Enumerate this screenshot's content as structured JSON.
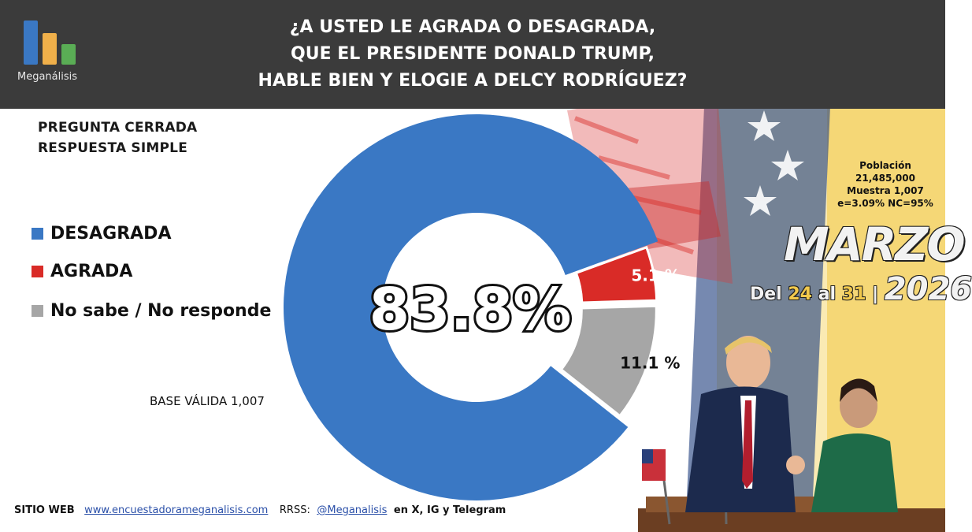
{
  "header": {
    "logo_text": "Meganálisis",
    "title_lines": [
      "¿A USTED LE AGRADA O DESAGRADA,",
      "QUE EL PRESIDENTE DONALD TRUMP,",
      "HABLE BIEN Y ELOGIE A DELCY RODRÍGUEZ?"
    ]
  },
  "question_type": {
    "line1": "PREGUNTA  CERRADA",
    "line2": "RESPUESTA SIMPLE"
  },
  "legend": [
    {
      "label": "DESAGRADA",
      "color": "#3a78c4"
    },
    {
      "label": "AGRADA",
      "color": "#d92b27"
    },
    {
      "label": "No sabe / No responde",
      "color": "#a6a6a6"
    }
  ],
  "base": "BASE VÁLIDA 1,007",
  "chart_data": {
    "type": "pie",
    "donut": true,
    "categories": [
      "DESAGRADA",
      "AGRADA",
      "No sabe / No responde"
    ],
    "values": [
      83.8,
      5.1,
      11.1
    ],
    "colors": [
      "#3a78c4",
      "#d92b27",
      "#a6a6a6"
    ],
    "center_label": "83.8%",
    "data_labels": [
      "",
      "5.1 %",
      "11.1 %"
    ],
    "legend_position": "left"
  },
  "sample": {
    "line1": "Población",
    "line2": "21,485,000",
    "line3": "Muestra 1,007",
    "line4": "e=3.09%  NC=95%"
  },
  "period": {
    "month": "MARZO",
    "prefix": "Del",
    "day_from": "24",
    "mid": "al",
    "day_to": "31",
    "sep": "|",
    "year": "2026"
  },
  "footer": {
    "web_label": "SITIO WEB",
    "web_url": "www.encuestadorameganalisis.com",
    "rrss_label": "RRSS:",
    "handle": "@Meganalisis",
    "networks": "en X, IG y Telegram"
  },
  "colors": {
    "header_bg": "#3b3b3b",
    "logo_blue": "#3a78c4",
    "logo_orange": "#f0b04a",
    "logo_green": "#5aad55"
  }
}
